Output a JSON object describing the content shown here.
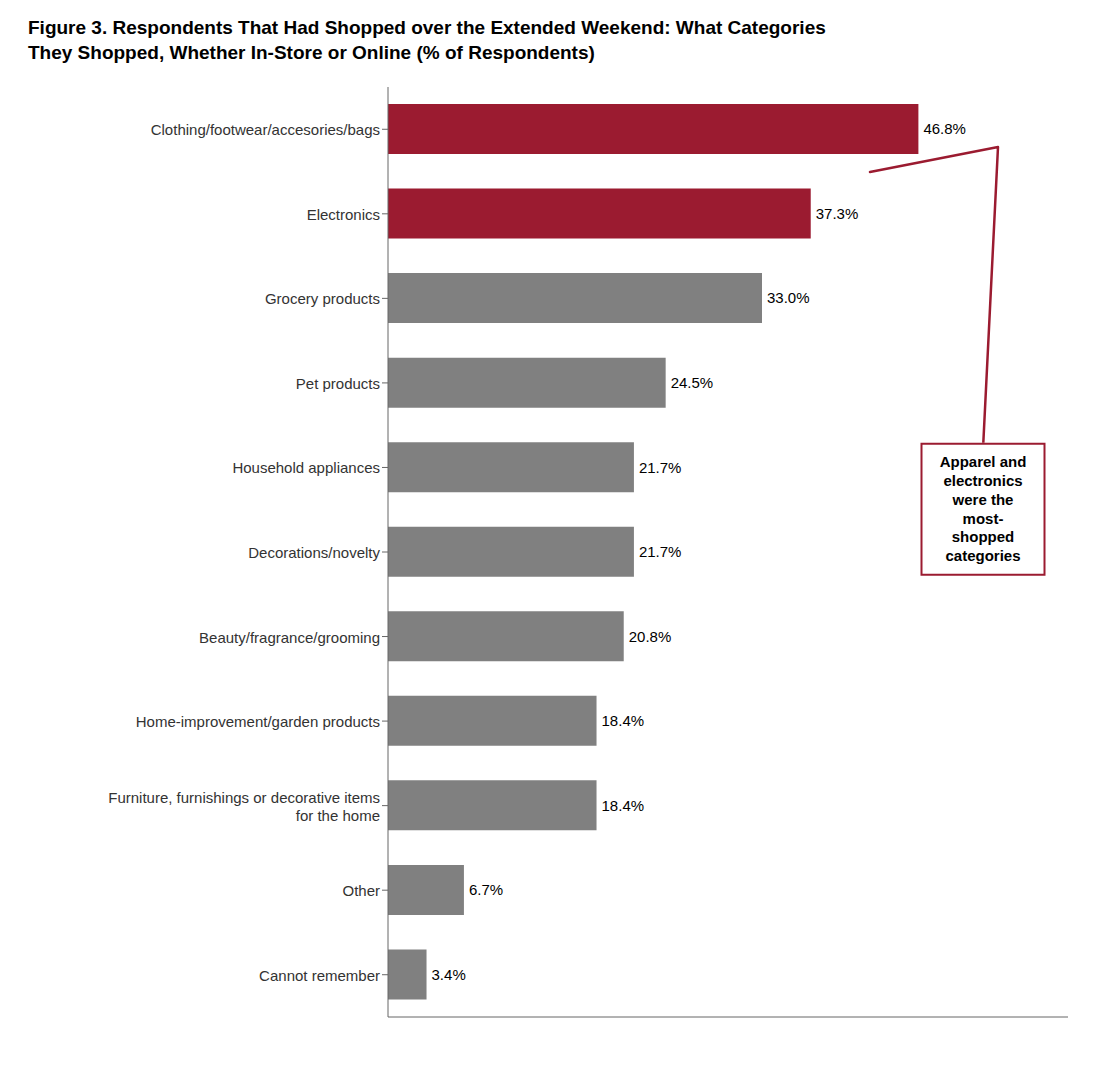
{
  "chart_data": {
    "type": "bar",
    "orientation": "horizontal",
    "title": "Figure 3. Respondents That Had Shopped over the Extended Weekend: What Categories\nThey Shopped, Whether In-Store or Online (% of Respondents)",
    "categories": [
      "Clothing/footwear/accesories/bags",
      "Electronics",
      "Grocery products",
      "Pet products",
      "Household appliances",
      "Decorations/novelty",
      "Beauty/fragrance/grooming",
      "Home-improvement/garden products",
      "Furniture, furnishings or decorative items\nfor the home",
      "Other",
      "Cannot remember"
    ],
    "values": [
      46.8,
      37.3,
      33.0,
      24.5,
      21.7,
      21.7,
      20.8,
      18.4,
      18.4,
      6.7,
      3.4
    ],
    "value_labels": [
      "46.8%",
      "37.3%",
      "33.0%",
      "24.5%",
      "21.7%",
      "21.7%",
      "20.8%",
      "18.4%",
      "18.4%",
      "6.7%",
      "3.4%"
    ],
    "colors": [
      "#9B1B30",
      "#9B1B30",
      "#808080",
      "#808080",
      "#808080",
      "#808080",
      "#808080",
      "#808080",
      "#808080",
      "#808080",
      "#808080"
    ],
    "xlim": [
      0,
      60
    ],
    "tick_labels": "y",
    "data_labels": true,
    "grid": false,
    "annotations": [
      "Apparel and\nelectronics\nwere the\nmost-shopped\ncategories"
    ]
  }
}
